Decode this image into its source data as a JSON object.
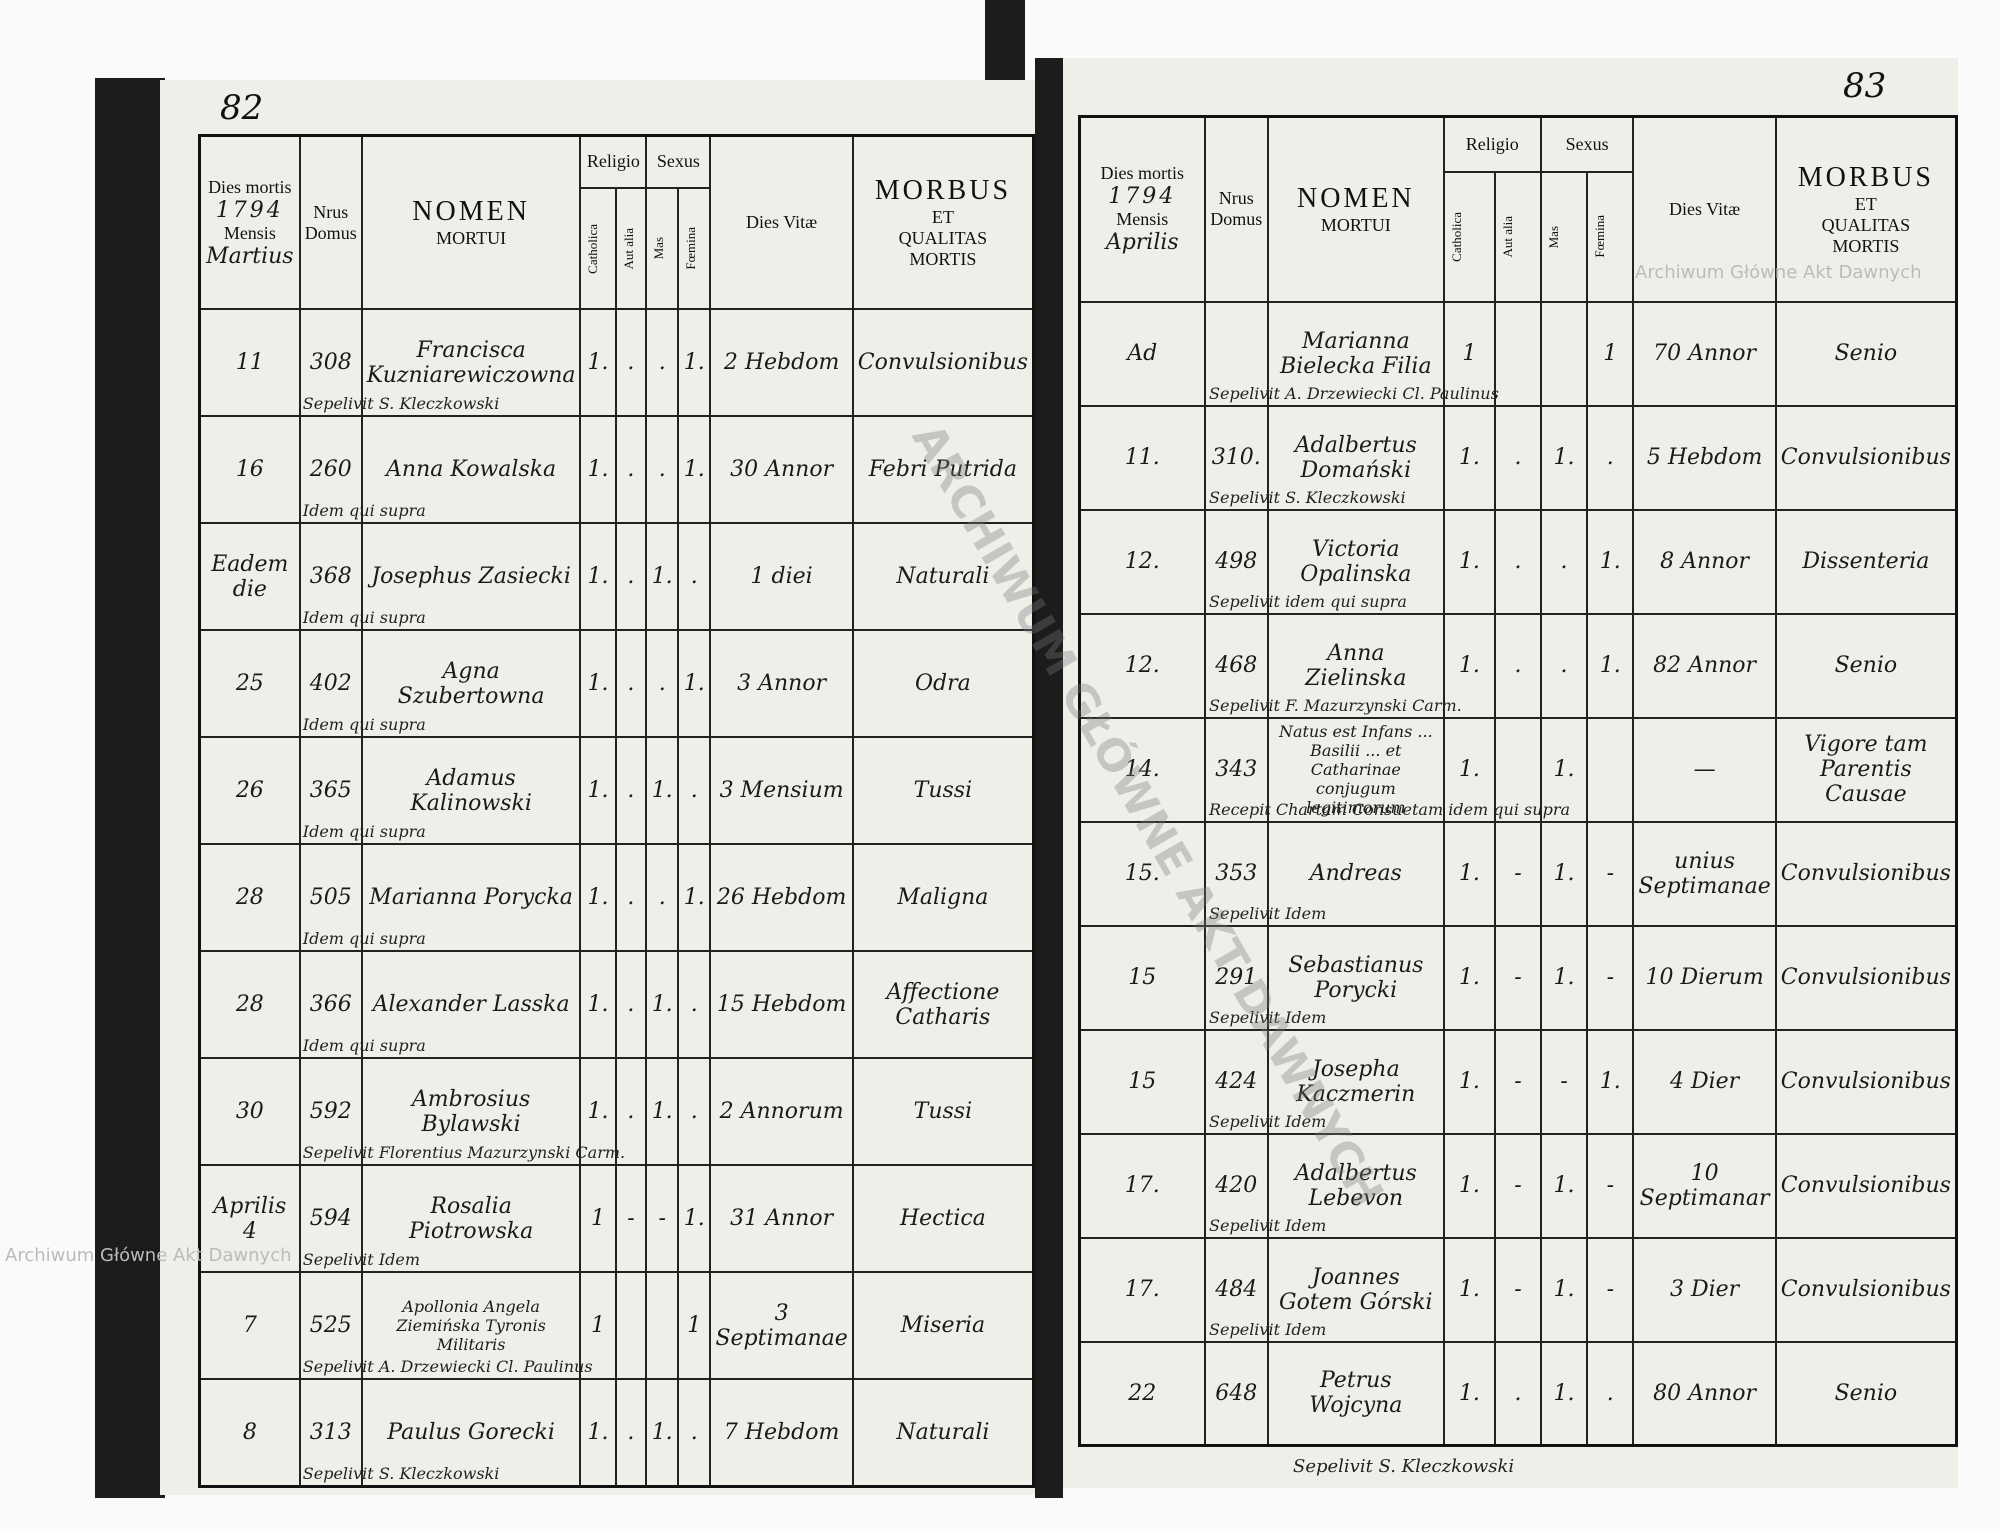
{
  "left_page": {
    "page_number": "82",
    "header": {
      "dies_mortis": "Dies mortis",
      "year": "1794",
      "mensis": "Mensis",
      "month": "Martius",
      "nrus_domus": "Nrus Domus",
      "nomen": "NOMEN",
      "mortui": "MORTUI",
      "religio": "Religio",
      "catholica": "Catholica",
      "aut_alia": "Aut alia",
      "sexus": "Sexus",
      "mas": "Mas",
      "foemina": "Fœmina",
      "dies_vitae": "Dies Vitæ",
      "morbus": "MORBUS",
      "et": "ET",
      "qualitas": "QUALITAS",
      "mortis": "MORTIS"
    },
    "rows": [
      {
        "day": "11",
        "house": "308",
        "name": "Francisca Kuzniarewiczowna",
        "catholica": "1.",
        "aut_alia": ".",
        "mas": ".",
        "foemina": "1.",
        "dies_vitae": "2 Hebdom",
        "morbus": "Convulsionibus",
        "note": "Sepelivit S. Kleczkowski"
      },
      {
        "day": "16",
        "house": "260",
        "name": "Anna Kowalska",
        "catholica": "1.",
        "aut_alia": ".",
        "mas": ".",
        "foemina": "1.",
        "dies_vitae": "30 Annor",
        "morbus": "Febri Putrida",
        "note": "Idem qui supra"
      },
      {
        "day": "Eadem die",
        "house": "368",
        "name": "Josephus Zasiecki",
        "catholica": "1.",
        "aut_alia": ".",
        "mas": "1.",
        "foemina": ".",
        "dies_vitae": "1 diei",
        "morbus": "Naturali",
        "note": "Idem qui supra"
      },
      {
        "day": "25",
        "house": "402",
        "name": "Agna Szubertowna",
        "catholica": "1.",
        "aut_alia": ".",
        "mas": ".",
        "foemina": "1.",
        "dies_vitae": "3 Annor",
        "morbus": "Odra",
        "note": "Idem qui supra"
      },
      {
        "day": "26",
        "house": "365",
        "name": "Adamus Kalinowski",
        "catholica": "1.",
        "aut_alia": ".",
        "mas": "1.",
        "foemina": ".",
        "dies_vitae": "3 Mensium",
        "morbus": "Tussi",
        "note": "Idem qui supra"
      },
      {
        "day": "28",
        "house": "505",
        "name": "Marianna Porycka",
        "catholica": "1.",
        "aut_alia": ".",
        "mas": ".",
        "foemina": "1.",
        "dies_vitae": "26 Hebdom",
        "morbus": "Maligna",
        "note": "Idem qui supra"
      },
      {
        "day": "28",
        "house": "366",
        "name": "Alexander Lasska",
        "catholica": "1.",
        "aut_alia": ".",
        "mas": "1.",
        "foemina": ".",
        "dies_vitae": "15 Hebdom",
        "morbus": "Affectione Catharis",
        "note": "Idem qui supra"
      },
      {
        "day": "30",
        "house": "592",
        "name": "Ambrosius Bylawski",
        "catholica": "1.",
        "aut_alia": ".",
        "mas": "1.",
        "foemina": ".",
        "dies_vitae": "2 Annorum",
        "morbus": "Tussi",
        "note": "Sepelivit Florentius Mazurzynski Carm."
      },
      {
        "day": "Aprilis 4",
        "house": "594",
        "name": "Rosalia Piotrowska",
        "catholica": "1",
        "aut_alia": "-",
        "mas": "-",
        "foemina": "1.",
        "dies_vitae": "31 Annor",
        "morbus": "Hectica",
        "note": "Sepelivit Idem"
      },
      {
        "day": "7",
        "house": "525",
        "name": "Apollonia Angela Ziemińska Tyronis Militaris",
        "catholica": "1",
        "foemina": "1",
        "dies_vitae": "3 Septimanae",
        "morbus": "Miseria",
        "note": "Sepelivit A. Drzewiecki Cl. Paulinus"
      },
      {
        "day": "8",
        "house": "313",
        "name": "Paulus Gorecki",
        "catholica": "1.",
        "aut_alia": ".",
        "mas": "1.",
        "foemina": ".",
        "dies_vitae": "7 Hebdom",
        "morbus": "Naturali",
        "note": "Sepelivit S. Kleczkowski"
      }
    ]
  },
  "right_page": {
    "page_number": "83",
    "header": {
      "dies_mortis": "Dies mortis",
      "year": "1794",
      "mensis": "Mensis",
      "month": "Aprilis",
      "nrus_domus": "Nrus Domus",
      "nomen": "NOMEN",
      "mortui": "MORTUI",
      "religio": "Religio",
      "catholica": "Catholica",
      "aut_alia": "Aut alia",
      "sexus": "Sexus",
      "mas": "Mas",
      "foemina": "Fœmina",
      "dies_vitae": "Dies Vitæ",
      "morbus": "MORBUS",
      "et": "ET",
      "qualitas": "QUALITAS",
      "mortis": "MORTIS"
    },
    "rows": [
      {
        "day": "Ad",
        "name": "Marianna Bielecka Filia",
        "catholica": "1",
        "foemina": "1",
        "dies_vitae": "70 Annor",
        "morbus": "Senio",
        "note": "Sepelivit A. Drzewiecki Cl. Paulinus"
      },
      {
        "day": "11.",
        "house": "310.",
        "name": "Adalbertus Domański",
        "catholica": "1.",
        "aut_alia": ".",
        "mas": "1.",
        "foemina": ".",
        "dies_vitae": "5 Hebdom",
        "morbus": "Convulsionibus",
        "note": "Sepelivit S. Kleczkowski"
      },
      {
        "day": "12.",
        "house": "498",
        "name": "Victoria Opalinska",
        "catholica": "1.",
        "aut_alia": ".",
        "mas": ".",
        "foemina": "1.",
        "dies_vitae": "8 Annor",
        "morbus": "Dissenteria",
        "note": "Sepelivit idem qui supra"
      },
      {
        "day": "12.",
        "house": "468",
        "name": "Anna Zielinska",
        "catholica": "1.",
        "aut_alia": ".",
        "mas": ".",
        "foemina": "1.",
        "dies_vitae": "82 Annor",
        "morbus": "Senio",
        "note": "Sepelivit F. Mazurzynski Carm."
      },
      {
        "day": "14.",
        "house": "343",
        "name": "Natus est Infans ... Basilii ... et Catharinae conjugum legitimorum",
        "catholica": "1.",
        "mas": "1.",
        "dies_vitae": "—",
        "morbus": "Vigore tam Parentis Causae",
        "note": "Recepit Chartam Consuetam idem qui supra"
      },
      {
        "day": "15.",
        "house": "353",
        "name": "Andreas",
        "catholica": "1.",
        "aut_alia": "-",
        "mas": "1.",
        "foemina": "-",
        "dies_vitae": "unius Septimanae",
        "morbus": "Convulsionibus",
        "note": "Sepelivit Idem"
      },
      {
        "day": "15",
        "house": "291",
        "name": "Sebastianus Porycki",
        "catholica": "1.",
        "aut_alia": "-",
        "mas": "1.",
        "foemina": "-",
        "dies_vitae": "10 Dierum",
        "morbus": "Convulsionibus",
        "note": "Sepelivit Idem"
      },
      {
        "day": "15",
        "house": "424",
        "name": "Josepha Kaczmerin",
        "catholica": "1.",
        "aut_alia": "-",
        "mas": "-",
        "foemina": "1.",
        "dies_vitae": "4 Dier",
        "morbus": "Convulsionibus",
        "note": "Sepelivit Idem"
      },
      {
        "day": "17.",
        "house": "420",
        "name": "Adalbertus Lebevon",
        "catholica": "1.",
        "aut_alia": "-",
        "mas": "1.",
        "foemina": "-",
        "dies_vitae": "10 Septimanar",
        "morbus": "Convulsionibus",
        "note": "Sepelivit Idem"
      },
      {
        "day": "17.",
        "house": "484",
        "name": "Joannes Gotem Górski",
        "catholica": "1.",
        "aut_alia": "-",
        "mas": "1.",
        "foemina": "-",
        "dies_vitae": "3 Dier",
        "morbus": "Convulsionibus",
        "note": "Sepelivit Idem"
      },
      {
        "day": "22",
        "house": "648",
        "name": "Petrus Wojcyna",
        "catholica": "1.",
        "aut_alia": ".",
        "mas": "1.",
        "foemina": ".",
        "dies_vitae": "80 Annor",
        "morbus": "Senio"
      }
    ],
    "footer": "Sepelivit S. Kleczkowski"
  },
  "watermarks": [
    "Archiwum Główne Akt Dawnych",
    "Archiwum Główne Akt Dawnych",
    "ARCHIWUM GŁÓWNE AKT DAWNYCH"
  ]
}
